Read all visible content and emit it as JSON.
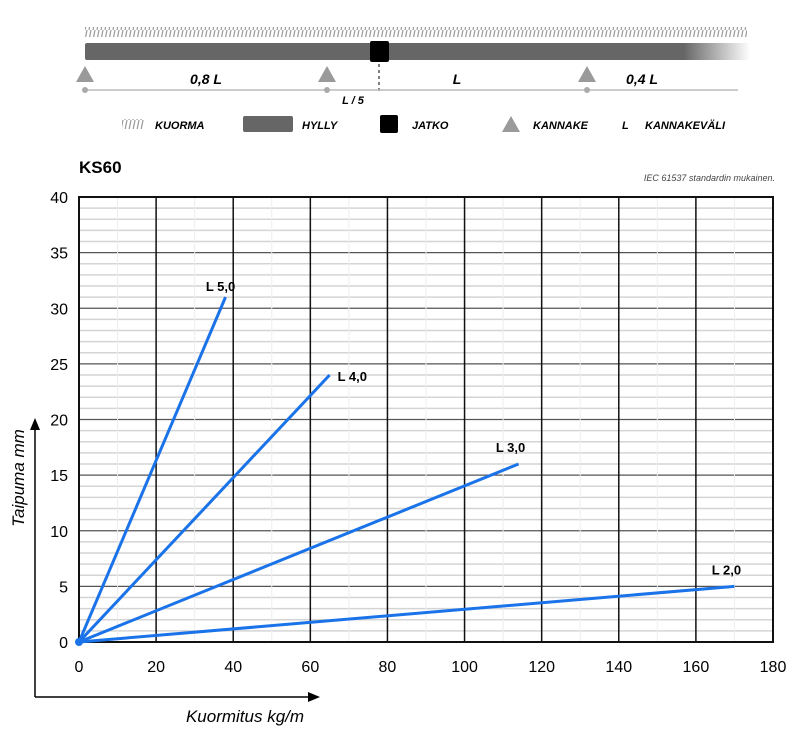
{
  "diagram": {
    "span_labels": [
      "0,8 L",
      "L",
      "0,4 L"
    ],
    "joint_label": "L / 5",
    "legend": [
      {
        "key": "load",
        "label": "KUORMA"
      },
      {
        "key": "shelf",
        "label": "HYLLY"
      },
      {
        "key": "joint",
        "label": "JATKO"
      },
      {
        "key": "bracket",
        "label": "KANNAKE"
      },
      {
        "key": "span",
        "symbol": "L",
        "label": "KANNAKEVÄLI"
      }
    ],
    "colors": {
      "shelf": "#666666",
      "joint": "#000000",
      "bracket": "#9a9a9a",
      "load": "#999999"
    }
  },
  "chart_data": {
    "type": "line",
    "title": "KS60",
    "note": "IEC 61537 standardin mukainen.",
    "xlabel": "Kuormitus kg/m",
    "ylabel": "Taipuma mm",
    "xlim": [
      0,
      180
    ],
    "ylim": [
      0,
      40
    ],
    "xticks": [
      0,
      20,
      40,
      60,
      80,
      100,
      120,
      140,
      160,
      180
    ],
    "yticks": [
      0,
      5,
      10,
      15,
      20,
      25,
      30,
      35,
      40
    ],
    "grid": true,
    "line_color": "#1a73e8",
    "series": [
      {
        "name": "L 5,0",
        "x": [
          0,
          38
        ],
        "y": [
          0,
          31
        ]
      },
      {
        "name": "L 4,0",
        "x": [
          0,
          65
        ],
        "y": [
          0,
          24
        ]
      },
      {
        "name": "L 3,0",
        "x": [
          0,
          114
        ],
        "y": [
          0,
          16
        ]
      },
      {
        "name": "L 2,0",
        "x": [
          0,
          170
        ],
        "y": [
          0,
          5
        ]
      }
    ]
  }
}
